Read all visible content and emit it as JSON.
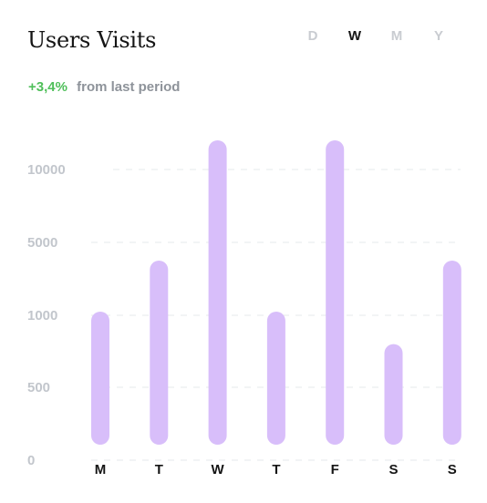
{
  "header": {
    "title": "Users Visits",
    "periods": [
      {
        "label": "D",
        "active": false
      },
      {
        "label": "W",
        "active": true
      },
      {
        "label": "M",
        "active": false
      },
      {
        "label": "Y",
        "active": false
      }
    ]
  },
  "summary": {
    "change": "+3,4%",
    "label": "from last period"
  },
  "colors": {
    "bar": "#d8befa",
    "grid": "#e6e8eb",
    "positive": "#4fbf5a"
  },
  "chart_data": {
    "type": "bar",
    "y_scale": "non-linear, evenly spaced ticks",
    "yticks": [
      0,
      500,
      1000,
      5000,
      10000
    ],
    "ytick_labels": [
      "0",
      "500",
      "1000",
      "5000",
      "10000"
    ],
    "categories": [
      "M",
      "T",
      "W",
      "T",
      "F",
      "S",
      "S"
    ],
    "values": [
      1200,
      4000,
      12000,
      1200,
      12000,
      800,
      4000
    ],
    "grid": true,
    "legend": "none"
  }
}
